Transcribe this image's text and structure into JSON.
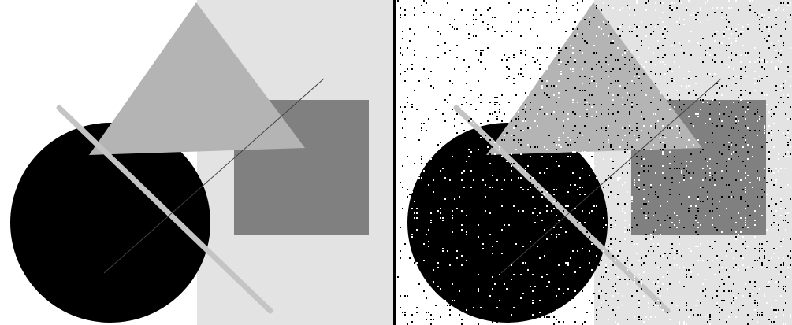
{
  "panels": [
    {
      "id": "clean",
      "noise": false
    },
    {
      "id": "noisy",
      "noise": true,
      "noise_density": 0.12
    }
  ],
  "colors": {
    "background": "#ffffff",
    "light_panel": "#e3e3e3",
    "triangle": "#b4b4b4",
    "square": "#808080",
    "circle": "#000000",
    "thick_line": "#c4c4c4",
    "thin_line": "#404040",
    "divider": "#000000",
    "noise_dark": "#000000",
    "noise_light": "#ffffff"
  }
}
